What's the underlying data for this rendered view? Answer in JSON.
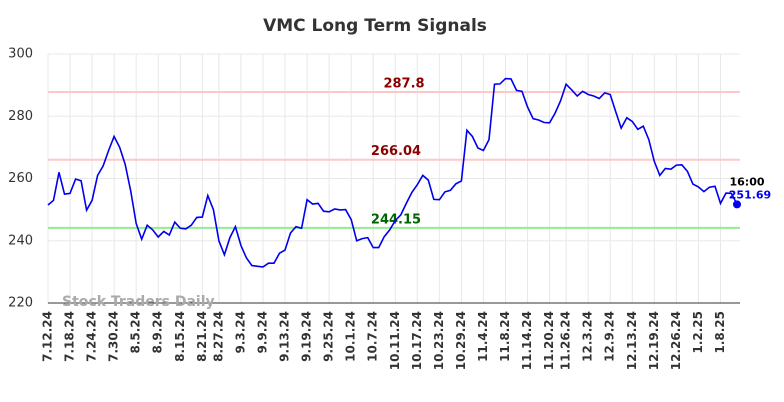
{
  "chart_data": {
    "type": "line",
    "title": "VMC Long Term Signals",
    "watermark": "Stock Traders Daily",
    "categories": [
      "7.12.24",
      null,
      null,
      null,
      "7.18.24",
      null,
      null,
      null,
      "7.24.24",
      null,
      null,
      null,
      "7.30.24",
      null,
      null,
      null,
      "8.5.24",
      null,
      null,
      null,
      "8.9.24",
      null,
      null,
      null,
      "8.15.24",
      null,
      null,
      null,
      "8.21.24",
      null,
      null,
      "8.27.24",
      null,
      null,
      null,
      "9.3.24",
      null,
      null,
      null,
      "9.9.24",
      null,
      null,
      null,
      "9.13.24",
      null,
      null,
      null,
      "9.19.24",
      null,
      null,
      null,
      "9.25.24",
      null,
      null,
      null,
      "10.1.24",
      null,
      null,
      null,
      "10.7.24",
      null,
      null,
      null,
      "10.11.24",
      null,
      null,
      null,
      "10.17.24",
      null,
      null,
      null,
      "10.23.24",
      null,
      null,
      null,
      "10.29.24",
      null,
      null,
      null,
      "11.4.24",
      null,
      null,
      null,
      "11.8.24",
      null,
      null,
      null,
      "11.14.24",
      null,
      null,
      null,
      "11.20.24",
      null,
      null,
      "11.26.24",
      null,
      null,
      null,
      "12.3.24",
      null,
      null,
      null,
      "12.9.24",
      null,
      null,
      null,
      "12.13.24",
      null,
      null,
      null,
      "12.19.24",
      null,
      null,
      null,
      "12.26.24",
      null,
      null,
      null,
      "1.2.25",
      null,
      null,
      null,
      "1.8.25",
      null,
      null,
      null
    ],
    "series": [
      {
        "name": "VMC",
        "color": "#0000ee",
        "values": [
          251.5,
          253,
          262,
          255,
          255.2,
          259.8,
          259.3,
          249.8,
          253,
          261,
          264,
          269,
          273.5,
          270,
          264.5,
          256,
          245.5,
          240.5,
          245,
          243.5,
          241.2,
          243,
          241.8,
          246,
          244,
          243.8,
          245,
          247.5,
          247.6,
          254.5,
          250,
          240,
          235.5,
          241,
          244.5,
          238.5,
          234.5,
          232,
          231.8,
          231.6,
          232.8,
          232.8,
          236,
          237,
          242.5,
          244.5,
          244,
          253.2,
          251.8,
          252,
          249.5,
          249.3,
          250.2,
          249.9,
          250,
          246.8,
          240,
          240.7,
          241,
          237.8,
          237.8,
          241.3,
          243.5,
          246.5,
          248.3,
          252,
          255.5,
          258,
          261,
          259.5,
          253.3,
          253.2,
          255.7,
          256.2,
          258.3,
          259.2,
          275.5,
          273.5,
          269.8,
          269,
          272.5,
          290.3,
          290.4,
          292.1,
          292,
          288.3,
          288,
          283,
          279.2,
          278.8,
          278,
          277.9,
          281,
          285,
          290.3,
          288.5,
          286.5,
          288,
          287,
          286.5,
          285.7,
          287.5,
          287,
          281.5,
          276.2,
          279.5,
          278.3,
          275.8,
          276.8,
          272.5,
          265.5,
          261,
          263.2,
          263,
          264.3,
          264.4,
          262.3,
          258.2,
          257.3,
          255.8,
          257.2,
          257.5,
          252,
          255.3,
          255.2,
          251.69
        ]
      }
    ],
    "last_time": "16:00",
    "levels": [
      {
        "value": 287.8,
        "line_color": "#ffc8c8",
        "text_color": "#8b0000"
      },
      {
        "value": 266.04,
        "line_color": "#ffc8c8",
        "text_color": "#8b0000"
      },
      {
        "value": 244.15,
        "line_color": "#90ee90",
        "text_color": "#006400"
      }
    ],
    "ylim": [
      220,
      300
    ],
    "yticks": [
      220,
      240,
      260,
      280,
      300
    ],
    "grid": true
  }
}
